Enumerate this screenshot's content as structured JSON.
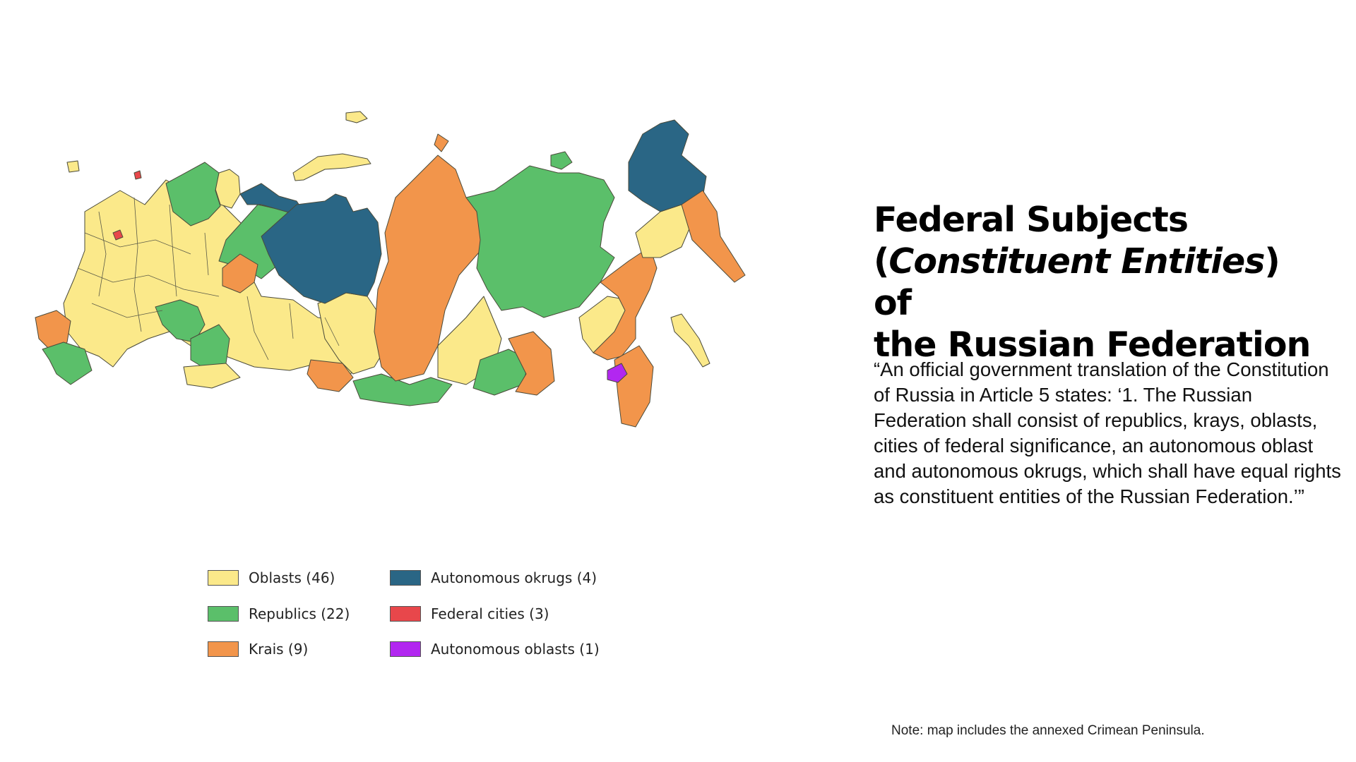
{
  "colors": {
    "oblast": "#fbe98a",
    "republic": "#5bbf6a",
    "krai": "#f2954b",
    "autonomous_okrug": "#2a6685",
    "federal_city": "#e8474b",
    "autonomous_oblast": "#b227f0",
    "border": "#5a5a48"
  },
  "title": {
    "line1": "Federal Subjects",
    "open_paren": "(",
    "italic": "Constituent Entities",
    "close_of": ") of",
    "line3": "the Russian Federation"
  },
  "quote": "“An official government translation of the Constitution of Russia in Article 5 states: ‘1. The Russian Federation shall consist of republics, krays, oblasts, cities of federal significance, an autonomous oblast and autonomous okrugs, which shall have equal rights as constituent entities of the Russian Federation.’”",
  "note": "Note: map includes the annexed Crimean Peninsula.",
  "legend": [
    {
      "label": "Oblasts (46)",
      "color": "#fbe98a"
    },
    {
      "label": "Autonomous okrugs (4)",
      "color": "#2a6685"
    },
    {
      "label": "Republics (22)",
      "color": "#5bbf6a"
    },
    {
      "label": "Federal cities (3)",
      "color": "#e8474b"
    },
    {
      "label": "Krais (9)",
      "color": "#f2954b"
    },
    {
      "label": "Autonomous oblasts (1)",
      "color": "#b227f0"
    }
  ]
}
